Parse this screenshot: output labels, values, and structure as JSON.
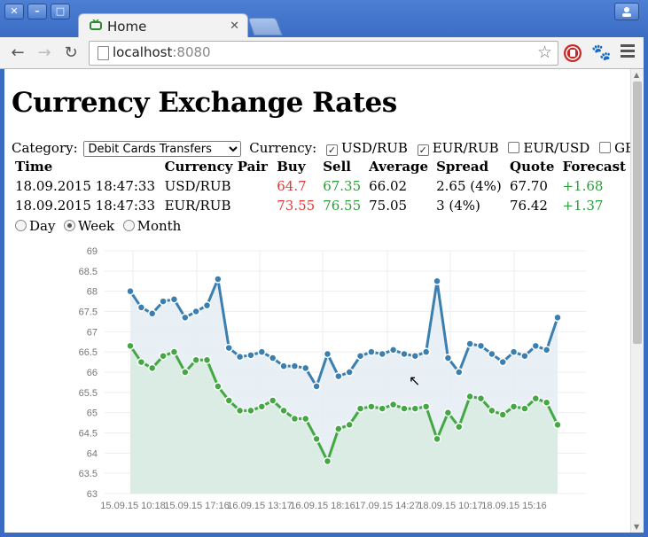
{
  "browser": {
    "tab_title": "Home",
    "url_host": "localhost",
    "url_port": ":8080"
  },
  "page": {
    "heading": "Currency Exchange Rates",
    "category_label": "Category:",
    "category_selected": "Debit Cards Transfers",
    "currency_label": "Currency:",
    "currencies": [
      {
        "label": "USD/RUB",
        "checked": true
      },
      {
        "label": "EUR/RUB",
        "checked": true
      },
      {
        "label": "EUR/USD",
        "checked": false
      },
      {
        "label": "GBP/RUB",
        "checked": false
      }
    ],
    "table": {
      "headers": [
        "Time",
        "Currency Pair",
        "Buy",
        "Sell",
        "Average",
        "Spread",
        "Quote",
        "Forecast"
      ],
      "rows": [
        [
          "18.09.2015 18:47:33",
          "USD/RUB",
          "64.7",
          "67.35",
          "66.02",
          "2.65 (4%)",
          "67.70",
          "+1.68"
        ],
        [
          "18.09.2015 18:47:33",
          "EUR/RUB",
          "73.55",
          "76.55",
          "75.05",
          "3 (4%)",
          "76.42",
          "+1.37"
        ]
      ]
    },
    "periods": [
      {
        "label": "Day",
        "selected": false
      },
      {
        "label": "Week",
        "selected": true
      },
      {
        "label": "Month",
        "selected": false
      }
    ]
  },
  "chart_data": {
    "type": "area",
    "ylim": [
      63,
      69
    ],
    "yticks": [
      "63",
      "63.5",
      "64",
      "64.5",
      "65",
      "65.5",
      "66",
      "66.5",
      "67",
      "67.5",
      "68",
      "68.5",
      "69"
    ],
    "xticks": [
      "15.09.15 10:18",
      "15.09.15 17:16",
      "16.09.15 13:17",
      "16.09.15 18:16",
      "17.09.15 14:27",
      "18.09.15 10:17",
      "18.09.15 15:16"
    ],
    "colors": {
      "series1": "#3a7fb0",
      "series2": "#43a843",
      "fill1": "#e4edf4",
      "fill2": "#d7ebdf"
    },
    "series": [
      {
        "values": [
          68.0,
          67.6,
          67.45,
          67.75,
          67.8,
          67.35,
          67.5,
          67.65,
          68.3,
          66.6,
          66.38,
          66.42,
          66.5,
          66.35,
          66.15,
          66.15,
          66.1,
          65.65,
          66.45,
          65.9,
          66.0,
          66.4,
          66.5,
          66.45,
          66.55,
          66.45,
          66.4,
          66.5,
          68.25,
          66.35,
          66.0,
          66.7,
          66.65,
          66.45,
          66.25,
          66.5,
          66.4,
          66.65,
          66.55,
          67.35
        ]
      },
      {
        "values": [
          66.65,
          66.25,
          66.1,
          66.4,
          66.5,
          66.0,
          66.3,
          66.3,
          65.65,
          65.3,
          65.05,
          65.05,
          65.15,
          65.3,
          65.05,
          64.85,
          64.85,
          64.35,
          63.8,
          64.6,
          64.7,
          65.1,
          65.15,
          65.1,
          65.2,
          65.1,
          65.1,
          65.15,
          64.35,
          65.0,
          64.65,
          65.4,
          65.35,
          65.05,
          64.95,
          65.15,
          65.1,
          65.35,
          65.25,
          64.7
        ]
      }
    ]
  }
}
